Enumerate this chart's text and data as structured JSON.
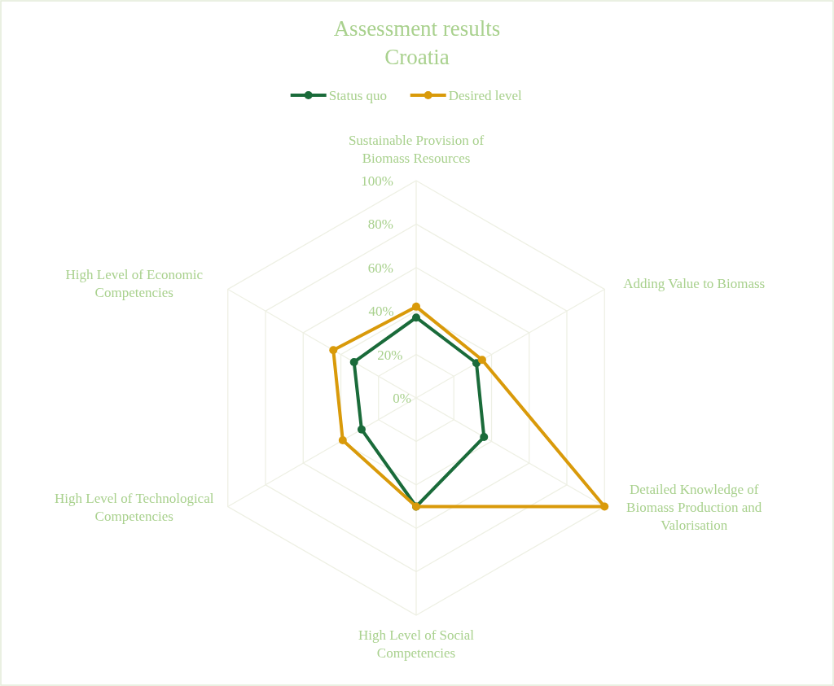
{
  "chart_data": {
    "type": "radar",
    "title": "Assessment results",
    "subtitle": "Croatia",
    "categories": [
      "Sustainable Provision of Biomass Resources",
      "Adding Value to Biomass",
      "Detailed Knowledge of Biomass Production and Valorisation",
      "High Level of Social Competencies",
      "High Level of Technological Competencies",
      "High Level of Economic Competencies"
    ],
    "series": [
      {
        "name": "Status quo",
        "color": "#1a6b3a",
        "values": [
          37,
          32,
          36,
          50,
          29,
          33
        ]
      },
      {
        "name": "Desired level",
        "color": "#d99a0a",
        "values": [
          42,
          35,
          100,
          50,
          39,
          44
        ]
      }
    ],
    "ylim": [
      0,
      100
    ],
    "yticks": [
      {
        "value": 0,
        "label": "0%"
      },
      {
        "value": 20,
        "label": "20%"
      },
      {
        "value": 40,
        "label": "40%"
      },
      {
        "value": 60,
        "label": "60%"
      },
      {
        "value": 80,
        "label": "80%"
      },
      {
        "value": 100,
        "label": "100%"
      }
    ],
    "grid": true,
    "legend": "top",
    "marker": "circle",
    "line_style": "solid"
  }
}
